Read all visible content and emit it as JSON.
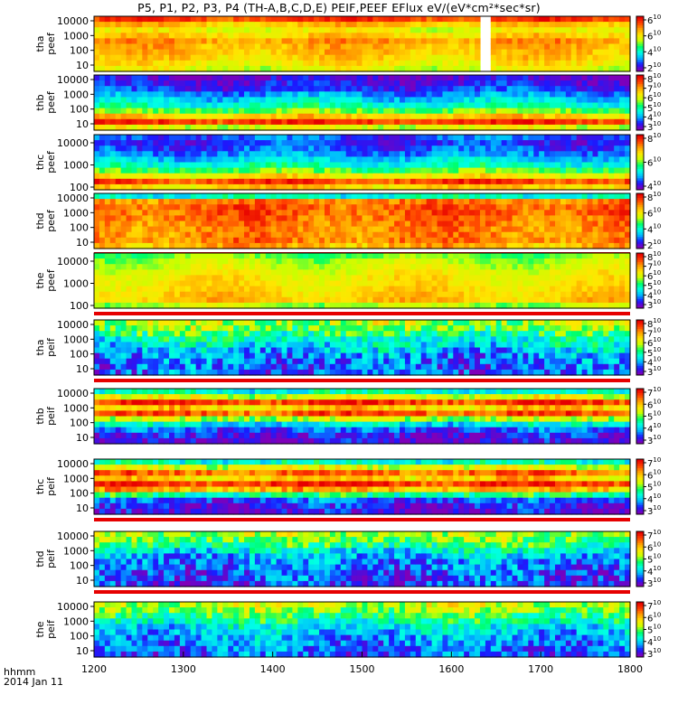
{
  "title": "P5, P1, P2, P3, P4 (TH-A,B,C,D,E) PEIF,PEEF EFlux eV/(eV*cm²*sec*sr)",
  "footer": {
    "label": "hhmm",
    "date": "2014 Jan 11"
  },
  "chart_data": {
    "type": "heatmap",
    "x": {
      "ticks": [
        1200,
        1300,
        1400,
        1500,
        1600,
        1700,
        1800
      ],
      "tick_labels": [
        "1200",
        "1300",
        "1400",
        "1500",
        "1600",
        "1700",
        "1800"
      ],
      "range": [
        1200,
        1800
      ]
    },
    "colorscale": [
      "#7e00ba",
      "#1a1aff",
      "#00b4ff",
      "#00ffe6",
      "#00ff64",
      "#c8ff00",
      "#ffe600",
      "#ffa000",
      "#ff4000",
      "#e60000"
    ],
    "panels": [
      {
        "ylabel": [
          "tha",
          "peef"
        ],
        "yticks": [
          "10000",
          "1000",
          "100",
          "10"
        ],
        "cbar": [
          {
            "b": "6",
            "e": "10"
          },
          {
            "b": "6",
            "e": "10"
          },
          {
            "b": "4",
            "e": "10"
          },
          {
            "b": "2",
            "e": "10"
          }
        ],
        "profile": [
          0.9,
          0.72,
          0.62,
          0.7,
          0.78,
          0.74,
          0.72,
          0.7,
          0.65,
          0.6
        ],
        "noise": 0.06,
        "gap_x": [
          1630,
          1645
        ],
        "line": false
      },
      {
        "ylabel": [
          "thb",
          "peef"
        ],
        "yticks": [
          "10000",
          "1000",
          "100",
          "10"
        ],
        "cbar": [
          {
            "b": "8",
            "e": "10"
          },
          {
            "b": "7",
            "e": "10"
          },
          {
            "b": "6",
            "e": "10"
          },
          {
            "b": "5",
            "e": "10"
          },
          {
            "b": "4",
            "e": "10"
          },
          {
            "b": "3",
            "e": "10"
          }
        ],
        "profile": [
          0.05,
          0.08,
          0.12,
          0.2,
          0.28,
          0.36,
          0.5,
          0.7,
          0.92,
          0.6
        ],
        "noise": 0.07,
        "line": false
      },
      {
        "ylabel": [
          "thc",
          "peef"
        ],
        "yticks": [
          "10000",
          "1000",
          "100"
        ],
        "cbar": [
          {
            "b": "8",
            "e": "10"
          },
          {
            "b": "6",
            "e": "10"
          },
          {
            "b": "4",
            "e": "10"
          }
        ],
        "profile": [
          0.15,
          0.12,
          0.15,
          0.2,
          0.28,
          0.36,
          0.48,
          0.65,
          0.9,
          0.7
        ],
        "noise": 0.07,
        "line": false
      },
      {
        "ylabel": [
          "thd",
          "peef"
        ],
        "yticks": [
          "10000",
          "1000",
          "100",
          "10"
        ],
        "cbar": [
          {
            "b": "8",
            "e": "10"
          },
          {
            "b": "6",
            "e": "10"
          },
          {
            "b": "4",
            "e": "10"
          },
          {
            "b": "2",
            "e": "10"
          }
        ],
        "profile": [
          0.35,
          0.82,
          0.86,
          0.86,
          0.84,
          0.82,
          0.8,
          0.8,
          0.82,
          0.75
        ],
        "noise": 0.08,
        "line": true
      },
      {
        "ylabel": [
          "the",
          "peef"
        ],
        "yticks": [
          "10000",
          "1000",
          "100"
        ],
        "cbar": [
          {
            "b": "8",
            "e": "10"
          },
          {
            "b": "7",
            "e": "10"
          },
          {
            "b": "6",
            "e": "10"
          },
          {
            "b": "5",
            "e": "10"
          },
          {
            "b": "4",
            "e": "10"
          },
          {
            "b": "3",
            "e": "10"
          }
        ],
        "profile": [
          0.5,
          0.55,
          0.58,
          0.62,
          0.65,
          0.66,
          0.68,
          0.7,
          0.72,
          0.55
        ],
        "noise": 0.05,
        "line": true
      },
      {
        "ylabel": [
          "tha",
          "peif"
        ],
        "yticks": [
          "10000",
          "1000",
          "100",
          "10"
        ],
        "cbar": [
          {
            "b": "8",
            "e": "10"
          },
          {
            "b": "7",
            "e": "10"
          },
          {
            "b": "6",
            "e": "10"
          },
          {
            "b": "5",
            "e": "10"
          },
          {
            "b": "4",
            "e": "10"
          },
          {
            "b": "3",
            "e": "10"
          }
        ],
        "profile": [
          0.55,
          0.5,
          0.42,
          0.35,
          0.3,
          0.25,
          0.2,
          0.18,
          0.16,
          0.15
        ],
        "noise": 0.14,
        "line": true
      },
      {
        "ylabel": [
          "thb",
          "peif"
        ],
        "yticks": [
          "10000",
          "1000",
          "100",
          "10"
        ],
        "cbar": [
          {
            "b": "7",
            "e": "10"
          },
          {
            "b": "6",
            "e": "10"
          },
          {
            "b": "5",
            "e": "10"
          },
          {
            "b": "4",
            "e": "10"
          },
          {
            "b": "3",
            "e": "10"
          }
        ],
        "profile": [
          0.35,
          0.6,
          0.92,
          0.7,
          0.88,
          0.55,
          0.3,
          0.15,
          0.08,
          0.05
        ],
        "noise": 0.1,
        "line": false
      },
      {
        "ylabel": [
          "thc",
          "peif"
        ],
        "yticks": [
          "10000",
          "1000",
          "100",
          "10"
        ],
        "cbar": [
          {
            "b": "7",
            "e": "10"
          },
          {
            "b": "6",
            "e": "10"
          },
          {
            "b": "5",
            "e": "10"
          },
          {
            "b": "4",
            "e": "10"
          },
          {
            "b": "3",
            "e": "10"
          }
        ],
        "profile": [
          0.35,
          0.6,
          0.85,
          0.7,
          0.92,
          0.75,
          0.4,
          0.15,
          0.08,
          0.05
        ],
        "noise": 0.1,
        "line": true
      },
      {
        "ylabel": [
          "thd",
          "peif"
        ],
        "yticks": [
          "10000",
          "1000",
          "100",
          "10"
        ],
        "cbar": [
          {
            "b": "7",
            "e": "10"
          },
          {
            "b": "6",
            "e": "10"
          },
          {
            "b": "5",
            "e": "10"
          },
          {
            "b": "4",
            "e": "10"
          },
          {
            "b": "3",
            "e": "10"
          }
        ],
        "profile": [
          0.55,
          0.5,
          0.42,
          0.32,
          0.25,
          0.2,
          0.18,
          0.15,
          0.14,
          0.12
        ],
        "noise": 0.13,
        "line": true
      },
      {
        "ylabel": [
          "the",
          "peif"
        ],
        "yticks": [
          "10000",
          "1000",
          "100",
          "10"
        ],
        "cbar": [
          {
            "b": "7",
            "e": "10"
          },
          {
            "b": "6",
            "e": "10"
          },
          {
            "b": "5",
            "e": "10"
          },
          {
            "b": "4",
            "e": "10"
          },
          {
            "b": "3",
            "e": "10"
          }
        ],
        "profile": [
          0.58,
          0.52,
          0.45,
          0.38,
          0.3,
          0.26,
          0.22,
          0.2,
          0.18,
          0.16
        ],
        "noise": 0.12,
        "line": false
      }
    ]
  }
}
